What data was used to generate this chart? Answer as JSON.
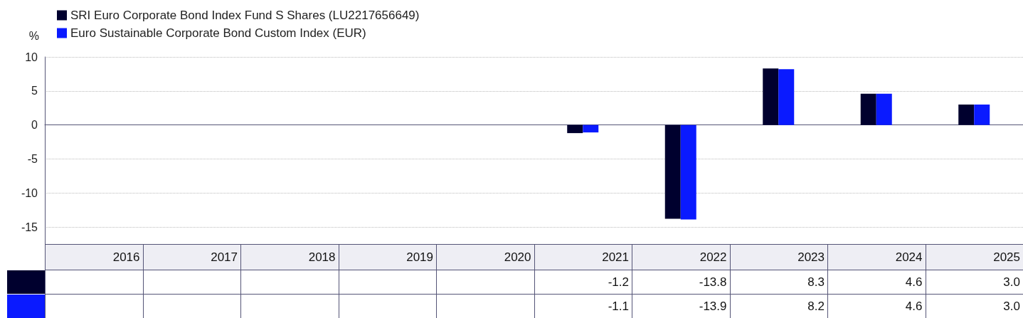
{
  "chart_data": {
    "type": "bar",
    "ylabel": "%",
    "categories": [
      "2016",
      "2017",
      "2018",
      "2019",
      "2020",
      "2021",
      "2022",
      "2023",
      "2024",
      "2025"
    ],
    "series": [
      {
        "name": "SRI Euro Corporate Bond Index Fund S Shares (LU2217656649)",
        "color": "#00002e",
        "values": [
          null,
          null,
          null,
          null,
          null,
          -1.2,
          -13.8,
          8.3,
          4.6,
          3.0
        ],
        "value_labels": [
          null,
          null,
          null,
          null,
          null,
          "-1.2",
          "-13.8",
          "8.3",
          "4.6",
          "3.0"
        ]
      },
      {
        "name": "Euro Sustainable Corporate Bond Custom Index (EUR)",
        "color": "#0a1aff",
        "values": [
          null,
          null,
          null,
          null,
          null,
          -1.1,
          -13.9,
          8.2,
          4.6,
          3.0
        ],
        "value_labels": [
          null,
          null,
          null,
          null,
          null,
          "-1.1",
          "-13.9",
          "8.2",
          "4.6",
          "3.0"
        ]
      }
    ],
    "ylim": [
      -17.5,
      10
    ],
    "yticks": [
      -15,
      -10,
      -5,
      0,
      5,
      10
    ],
    "grid": "y",
    "legend": "top left"
  }
}
